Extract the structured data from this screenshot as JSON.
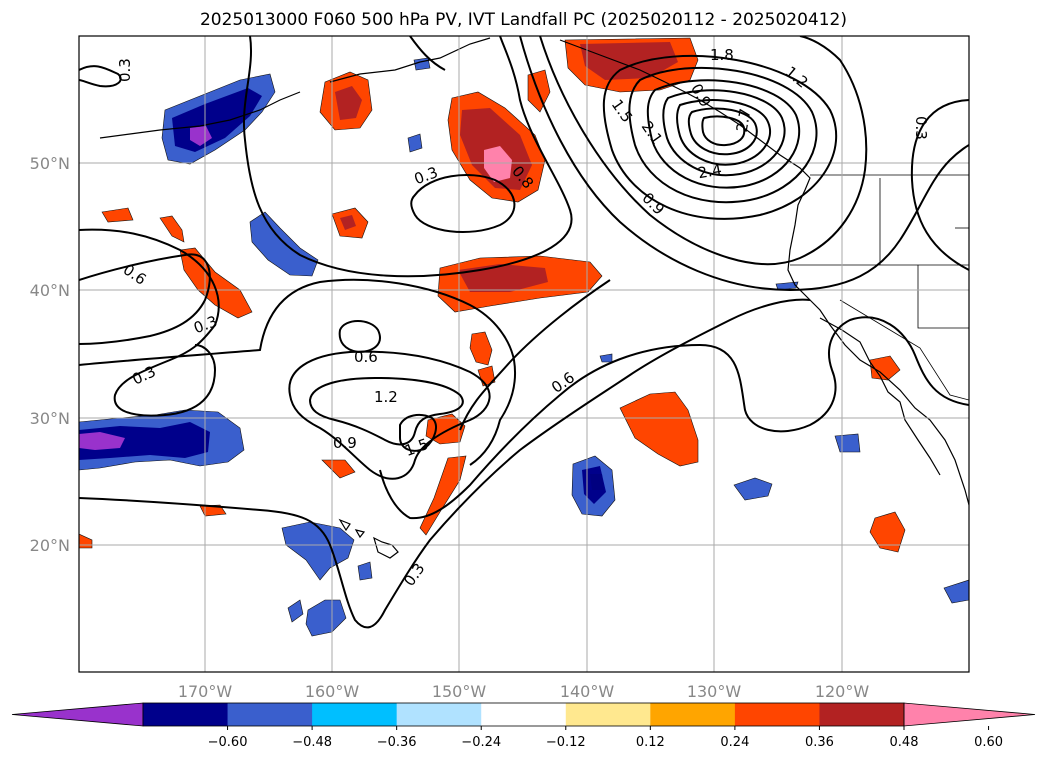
{
  "title": "2025013000 F060 500 hPa PV, IVT Landfall PC (2025020112 - 2025020412)",
  "longitude_labels": [
    "170°W",
    "160°W",
    "150°W",
    "140°W",
    "130°W",
    "120°W"
  ],
  "latitude_labels": [
    "50°N",
    "40°N",
    "30°N",
    "20°N"
  ],
  "contour_labels": [
    "0.3",
    "0.3",
    "0.3",
    "0.3",
    "0.3",
    "0.3",
    "0.6",
    "0.6",
    "0.6",
    "0.9",
    "0.9",
    "0.9",
    "1.2",
    "1.2",
    "1.5",
    "1.5",
    "1.8",
    "2.1",
    "2.4",
    "2.7",
    "0.8"
  ],
  "colorbar": {
    "ticks": [
      "−0.60",
      "−0.48",
      "−0.36",
      "−0.24",
      "−0.12",
      "0.12",
      "0.24",
      "0.36",
      "0.48",
      "0.60"
    ],
    "colors": [
      "#9932cc",
      "#00008b",
      "#3a5fcd",
      "#00bfff",
      "#b0e2ff",
      "#ffffff",
      "#ffe88f",
      "#ffa500",
      "#ff4500",
      "#b22222",
      "#ff82ab"
    ]
  }
}
